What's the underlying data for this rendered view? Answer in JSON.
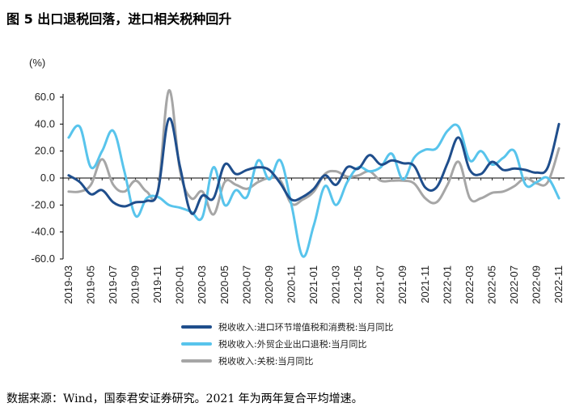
{
  "title": "图 5 出口退税回落，进口相关税种回升",
  "source": "数据来源：Wind，国泰君安证券研究。2021 年为两年复合平均增速。",
  "chart_data": {
    "type": "line",
    "unit": "(%)",
    "ylim": [
      -60,
      60
    ],
    "yticks": [
      -60,
      -40,
      -20,
      0,
      20,
      40,
      60
    ],
    "ytick_labels": [
      "-60.0",
      "-40.0",
      "-20.0",
      "0.0",
      "20.0",
      "40.0",
      "60.0"
    ],
    "x_labels": [
      "2019-03",
      "2019-05",
      "2019-07",
      "2019-09",
      "2019-11",
      "2020-01",
      "2020-03",
      "2020-05",
      "2020-07",
      "2020-09",
      "2020-11",
      "2021-01",
      "2021-03",
      "2021-05",
      "2021-07",
      "2021-09",
      "2021-11",
      "2022-01",
      "2022-03",
      "2022-05",
      "2022-07",
      "2022-09",
      "2022-11"
    ],
    "x": [
      "2019-03",
      "2019-04",
      "2019-05",
      "2019-06",
      "2019-07",
      "2019-08",
      "2019-09",
      "2019-10",
      "2019-11",
      "2019-12",
      "2020-01",
      "2020-02",
      "2020-03",
      "2020-04",
      "2020-05",
      "2020-06",
      "2020-07",
      "2020-08",
      "2020-09",
      "2020-10",
      "2020-11",
      "2020-12",
      "2021-01",
      "2021-02",
      "2021-03",
      "2021-04",
      "2021-05",
      "2021-06",
      "2021-07",
      "2021-08",
      "2021-09",
      "2021-10",
      "2021-11",
      "2021-12",
      "2022-01",
      "2022-02",
      "2022-03",
      "2022-04",
      "2022-05",
      "2022-06",
      "2022-07",
      "2022-08",
      "2022-09",
      "2022-10",
      "2022-11"
    ],
    "series": [
      {
        "name": "税收收入:进口环节增值税和消费税:当月同比",
        "color": "#1f4e8c",
        "width": 3,
        "values": [
          2,
          -3,
          -12,
          -9,
          -18,
          -21,
          -18,
          -17,
          -10,
          44,
          8,
          -26,
          -13,
          -15,
          10,
          3,
          6,
          8,
          6,
          -4,
          -16,
          -14,
          -8,
          2,
          -5,
          8,
          7,
          17,
          10,
          13,
          11,
          9,
          -7,
          -7,
          11,
          30,
          6,
          3,
          12,
          6,
          7,
          6,
          4,
          8,
          40
        ]
      },
      {
        "name": "税收收入:外贸企业出口退税:当月同比",
        "color": "#58c4ec",
        "width": 3,
        "values": [
          30,
          38,
          8,
          20,
          35,
          5,
          -28,
          -15,
          -14,
          -20,
          -22,
          -25,
          -29,
          8,
          -20,
          -9,
          -14,
          13,
          -1,
          13,
          -20,
          -58,
          -35,
          -6,
          -20,
          -3,
          8,
          5,
          8,
          18,
          -1,
          15,
          21,
          22,
          35,
          38,
          13,
          20,
          10,
          15,
          20,
          -5,
          -3,
          0,
          -15
        ]
      },
      {
        "name": "税收收入:关税:当月同比",
        "color": "#a6a6a6",
        "width": 3,
        "values": [
          -10,
          -10,
          -5,
          14,
          -5,
          -10,
          -2,
          -10,
          -10,
          65,
          5,
          -15,
          -10,
          -27,
          -3,
          -5,
          -8,
          -3,
          0,
          -2,
          -19,
          -16,
          -10,
          3,
          5,
          1,
          2,
          5,
          -2,
          -2,
          -2,
          -4,
          -15,
          -18,
          -5,
          12,
          -15,
          -15,
          -11,
          -10,
          -6,
          0,
          -4,
          -3,
          22
        ]
      }
    ]
  }
}
